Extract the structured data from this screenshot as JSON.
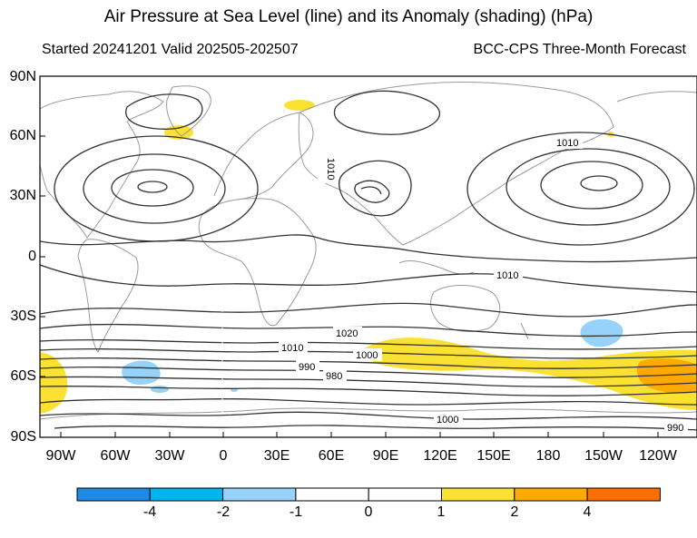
{
  "title": "Air Pressure at Sea Level (line) and its Anomaly (shading) (hPa)",
  "subtitle_left": "Started 20241201  Valid 202505-202507",
  "subtitle_right": "BCC-CPS Three-Month Forecast",
  "lat_labels": [
    "90N",
    "60N",
    "30N",
    "0",
    "30S",
    "60S",
    "90S"
  ],
  "lon_labels": [
    "90W",
    "60W",
    "30W",
    "0",
    "30E",
    "60E",
    "90E",
    "120E",
    "150E",
    "180",
    "150W",
    "120W"
  ],
  "contour_labels": [
    "1010",
    "1010",
    "1010",
    "1020",
    "1010",
    "1000",
    "990",
    "980",
    "1000",
    "990"
  ],
  "colorbar": {
    "labels": [
      "-4",
      "-2",
      "-1",
      "0",
      "1",
      "2",
      "4"
    ],
    "colors": [
      "#1e8ae6",
      "#00b4ee",
      "#96d2fa",
      "#ffffff",
      "#ffffff",
      "#fae132",
      "#ffaa00",
      "#ff6e00"
    ]
  },
  "colors": {
    "positive_anomaly": "#fae132",
    "strong_positive_anomaly": "#ffaa00",
    "negative_anomaly": "#96d2fa",
    "contour": "#333333",
    "coastline": "#9a9a9a"
  }
}
